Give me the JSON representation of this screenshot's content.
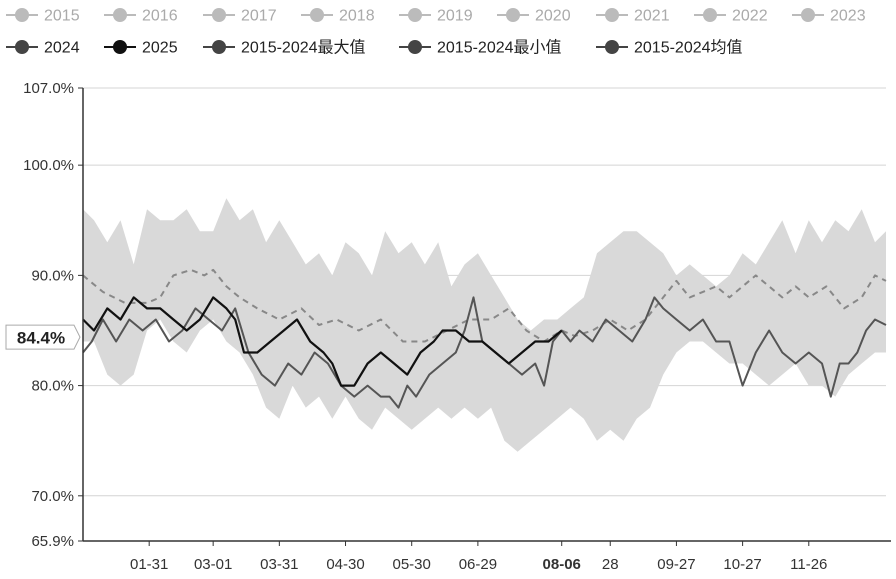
{
  "chart_data": {
    "type": "line",
    "legend": {
      "placement": "top",
      "items": [
        {
          "name": "2015",
          "active": false
        },
        {
          "name": "2016",
          "active": false
        },
        {
          "name": "2017",
          "active": false
        },
        {
          "name": "2018",
          "active": false
        },
        {
          "name": "2019",
          "active": false
        },
        {
          "name": "2020",
          "active": false
        },
        {
          "name": "2021",
          "active": false
        },
        {
          "name": "2022",
          "active": false
        },
        {
          "name": "2023",
          "active": false
        },
        {
          "name": "2024",
          "active": true
        },
        {
          "name": "2025",
          "active": true
        },
        {
          "name": "2015-2024最大值",
          "active": true
        },
        {
          "name": "2015-2024最小值",
          "active": true
        },
        {
          "name": "2015-2024均值",
          "active": true
        }
      ]
    },
    "y_axis": {
      "ticks": [
        "107.0%",
        "100.0%",
        "90.0%",
        "80.0%",
        "70.0%",
        "65.9%"
      ],
      "tick_values": [
        107.0,
        100.0,
        90.0,
        80.0,
        70.0,
        65.9
      ],
      "ylim": [
        65.9,
        107.0
      ],
      "grid": true,
      "highlight_label": "84.4%",
      "highlight_value": 84.4
    },
    "x_axis": {
      "ticks": [
        "01-31",
        "03-01",
        "03-31",
        "04-30",
        "05-30",
        "06-29",
        "08-06",
        "28",
        "09-27",
        "10-27",
        "11-26"
      ],
      "tick_days": [
        31,
        60,
        90,
        120,
        150,
        180,
        218,
        240,
        270,
        300,
        330
      ],
      "highlight": "08-06",
      "xlim": [
        1,
        365
      ]
    },
    "band": {
      "max": [
        [
          1,
          96
        ],
        [
          6,
          95
        ],
        [
          12,
          93
        ],
        [
          18,
          95
        ],
        [
          24,
          91
        ],
        [
          30,
          96
        ],
        [
          36,
          95
        ],
        [
          42,
          95
        ],
        [
          48,
          96
        ],
        [
          54,
          94
        ],
        [
          60,
          94
        ],
        [
          66,
          97
        ],
        [
          72,
          95
        ],
        [
          78,
          96
        ],
        [
          84,
          93
        ],
        [
          90,
          95
        ],
        [
          96,
          93
        ],
        [
          102,
          91
        ],
        [
          108,
          92
        ],
        [
          114,
          90
        ],
        [
          120,
          93
        ],
        [
          126,
          92
        ],
        [
          132,
          90
        ],
        [
          138,
          94
        ],
        [
          144,
          92
        ],
        [
          150,
          93
        ],
        [
          156,
          91
        ],
        [
          162,
          93
        ],
        [
          168,
          89
        ],
        [
          174,
          91
        ],
        [
          180,
          92
        ],
        [
          186,
          90
        ],
        [
          192,
          88
        ],
        [
          198,
          86
        ],
        [
          204,
          85
        ],
        [
          210,
          86
        ],
        [
          216,
          86
        ],
        [
          222,
          87
        ],
        [
          228,
          88
        ],
        [
          234,
          92
        ],
        [
          240,
          93
        ],
        [
          246,
          94
        ],
        [
          252,
          94
        ],
        [
          258,
          93
        ],
        [
          264,
          92
        ],
        [
          270,
          90
        ],
        [
          276,
          91
        ],
        [
          282,
          90
        ],
        [
          288,
          89
        ],
        [
          294,
          90
        ],
        [
          300,
          92
        ],
        [
          306,
          91
        ],
        [
          312,
          93
        ],
        [
          318,
          95
        ],
        [
          324,
          92
        ],
        [
          330,
          95
        ],
        [
          336,
          93
        ],
        [
          342,
          95
        ],
        [
          348,
          94
        ],
        [
          354,
          96
        ],
        [
          360,
          93
        ],
        [
          365,
          94
        ]
      ],
      "min": [
        [
          1,
          84
        ],
        [
          6,
          84
        ],
        [
          12,
          81
        ],
        [
          18,
          80
        ],
        [
          24,
          81
        ],
        [
          30,
          85
        ],
        [
          36,
          86
        ],
        [
          42,
          84
        ],
        [
          48,
          83
        ],
        [
          54,
          85
        ],
        [
          60,
          86
        ],
        [
          66,
          84
        ],
        [
          72,
          83
        ],
        [
          78,
          81
        ],
        [
          84,
          78
        ],
        [
          90,
          77
        ],
        [
          96,
          80
        ],
        [
          102,
          78
        ],
        [
          108,
          79
        ],
        [
          114,
          77
        ],
        [
          120,
          79
        ],
        [
          126,
          77
        ],
        [
          132,
          76
        ],
        [
          138,
          78
        ],
        [
          144,
          77
        ],
        [
          150,
          76
        ],
        [
          156,
          77
        ],
        [
          162,
          78
        ],
        [
          168,
          77
        ],
        [
          174,
          78
        ],
        [
          180,
          77
        ],
        [
          186,
          78
        ],
        [
          192,
          75
        ],
        [
          198,
          74
        ],
        [
          204,
          75
        ],
        [
          210,
          76
        ],
        [
          216,
          77
        ],
        [
          222,
          78
        ],
        [
          228,
          77
        ],
        [
          234,
          75
        ],
        [
          240,
          76
        ],
        [
          246,
          75
        ],
        [
          252,
          77
        ],
        [
          258,
          78
        ],
        [
          264,
          81
        ],
        [
          270,
          83
        ],
        [
          276,
          84
        ],
        [
          282,
          84
        ],
        [
          288,
          83
        ],
        [
          294,
          82
        ],
        [
          300,
          82
        ],
        [
          306,
          81
        ],
        [
          312,
          80
        ],
        [
          318,
          81
        ],
        [
          324,
          82
        ],
        [
          330,
          80
        ],
        [
          336,
          80
        ],
        [
          342,
          79
        ],
        [
          348,
          81
        ],
        [
          354,
          82
        ],
        [
          360,
          83
        ],
        [
          365,
          83
        ]
      ]
    },
    "series": [
      {
        "name": "2015-2024均值",
        "style": "dashed",
        "color": "#888888",
        "points": [
          [
            1,
            90
          ],
          [
            10,
            88.5
          ],
          [
            20,
            87.5
          ],
          [
            30,
            87.5
          ],
          [
            36,
            88
          ],
          [
            42,
            90
          ],
          [
            50,
            90.5
          ],
          [
            56,
            90
          ],
          [
            60,
            90.5
          ],
          [
            66,
            89
          ],
          [
            72,
            88
          ],
          [
            80,
            87
          ],
          [
            90,
            86
          ],
          [
            100,
            87
          ],
          [
            108,
            85.5
          ],
          [
            116,
            86
          ],
          [
            126,
            85
          ],
          [
            136,
            86
          ],
          [
            146,
            84
          ],
          [
            156,
            84
          ],
          [
            166,
            85
          ],
          [
            176,
            86
          ],
          [
            186,
            86
          ],
          [
            194,
            87
          ],
          [
            202,
            85
          ],
          [
            210,
            84
          ],
          [
            218,
            85
          ],
          [
            224,
            84.5
          ],
          [
            232,
            85
          ],
          [
            240,
            86
          ],
          [
            248,
            85
          ],
          [
            256,
            86
          ],
          [
            264,
            88
          ],
          [
            270,
            89.5
          ],
          [
            276,
            88
          ],
          [
            282,
            88.5
          ],
          [
            288,
            89
          ],
          [
            294,
            88
          ],
          [
            300,
            89
          ],
          [
            306,
            90
          ],
          [
            312,
            89
          ],
          [
            318,
            88
          ],
          [
            324,
            89
          ],
          [
            330,
            88
          ],
          [
            338,
            89
          ],
          [
            346,
            87
          ],
          [
            354,
            88
          ],
          [
            360,
            90
          ],
          [
            365,
            89.5
          ]
        ]
      },
      {
        "name": "2024",
        "style": "solid",
        "color": "#555555",
        "points": [
          [
            1,
            83
          ],
          [
            5,
            84
          ],
          [
            10,
            86
          ],
          [
            16,
            84
          ],
          [
            22,
            86
          ],
          [
            28,
            85
          ],
          [
            34,
            86
          ],
          [
            40,
            84
          ],
          [
            46,
            85
          ],
          [
            52,
            87
          ],
          [
            58,
            86
          ],
          [
            64,
            85
          ],
          [
            70,
            87
          ],
          [
            76,
            83
          ],
          [
            82,
            81
          ],
          [
            88,
            80
          ],
          [
            94,
            82
          ],
          [
            100,
            81
          ],
          [
            106,
            83
          ],
          [
            112,
            82
          ],
          [
            118,
            80
          ],
          [
            124,
            79
          ],
          [
            130,
            80
          ],
          [
            136,
            79
          ],
          [
            140,
            79
          ],
          [
            144,
            78
          ],
          [
            148,
            80
          ],
          [
            152,
            79
          ],
          [
            158,
            81
          ],
          [
            164,
            82
          ],
          [
            170,
            83
          ],
          [
            174,
            85
          ],
          [
            178,
            88
          ],
          [
            182,
            84
          ],
          [
            188,
            83
          ],
          [
            194,
            82
          ],
          [
            200,
            81
          ],
          [
            206,
            82
          ],
          [
            210,
            80
          ],
          [
            214,
            84
          ],
          [
            218,
            85
          ],
          [
            222,
            84
          ],
          [
            226,
            85
          ],
          [
            232,
            84
          ],
          [
            238,
            86
          ],
          [
            244,
            85
          ],
          [
            250,
            84
          ],
          [
            256,
            86
          ],
          [
            260,
            88
          ],
          [
            264,
            87
          ],
          [
            270,
            86
          ],
          [
            276,
            85
          ],
          [
            282,
            86
          ],
          [
            288,
            84
          ],
          [
            294,
            84
          ],
          [
            300,
            80
          ],
          [
            306,
            83
          ],
          [
            312,
            85
          ],
          [
            318,
            83
          ],
          [
            324,
            82
          ],
          [
            330,
            83
          ],
          [
            336,
            82
          ],
          [
            340,
            79
          ],
          [
            344,
            82
          ],
          [
            348,
            82
          ],
          [
            352,
            83
          ],
          [
            356,
            85
          ],
          [
            360,
            86
          ],
          [
            365,
            85.5
          ]
        ]
      },
      {
        "name": "2025",
        "style": "solid",
        "color": "#111111",
        "points": [
          [
            1,
            86
          ],
          [
            6,
            85
          ],
          [
            12,
            87
          ],
          [
            18,
            86
          ],
          [
            24,
            88
          ],
          [
            30,
            87
          ],
          [
            36,
            87
          ],
          [
            42,
            86
          ],
          [
            48,
            85
          ],
          [
            54,
            86
          ],
          [
            60,
            88
          ],
          [
            66,
            87
          ],
          [
            70,
            86
          ],
          [
            74,
            83
          ],
          [
            80,
            83
          ],
          [
            86,
            84
          ],
          [
            92,
            85
          ],
          [
            98,
            86
          ],
          [
            104,
            84
          ],
          [
            110,
            83
          ],
          [
            114,
            82
          ],
          [
            118,
            80
          ],
          [
            124,
            80
          ],
          [
            130,
            82
          ],
          [
            136,
            83
          ],
          [
            142,
            82
          ],
          [
            148,
            81
          ],
          [
            154,
            83
          ],
          [
            160,
            84
          ],
          [
            164,
            85
          ],
          [
            170,
            85
          ],
          [
            176,
            84
          ],
          [
            182,
            84
          ],
          [
            188,
            83
          ],
          [
            194,
            82
          ],
          [
            200,
            83
          ],
          [
            206,
            84
          ],
          [
            212,
            84
          ],
          [
            218,
            85
          ]
        ]
      }
    ]
  }
}
